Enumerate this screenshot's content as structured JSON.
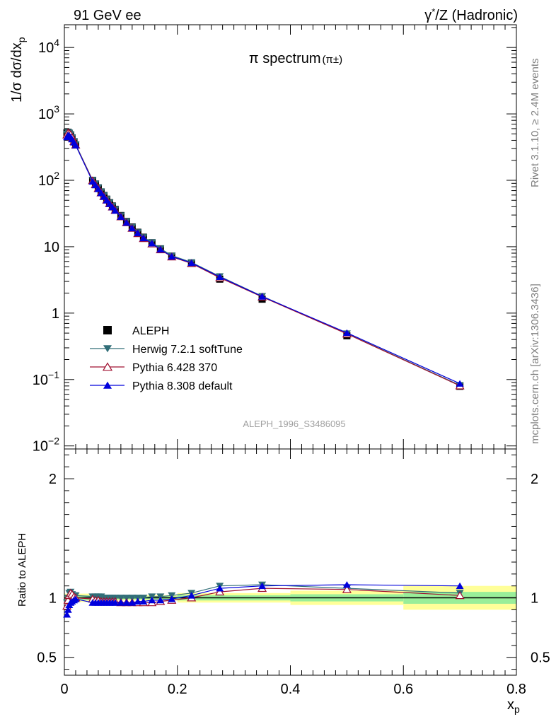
{
  "header": {
    "left": "91 GeV ee",
    "right_base": "γ",
    "right_sup": "*",
    "right_rest": "/Z (Hadronic)"
  },
  "side_labels": {
    "rivet": "Rivet 3.1.10, ≥ 2.4M events",
    "mcplots": "mcplots.cern.ch [arXiv:1306.3436]"
  },
  "chart_data": {
    "type": "scatter",
    "title_main": "π spectrum",
    "title_sub": "(π±)",
    "watermark": "ALEPH_1996_S3486095",
    "ylabel_base": "1/σ dσ/dx",
    "ylabel_sub": "p",
    "xlabel_base": "x",
    "xlabel_sub": "p",
    "ratio_ylabel": "Ratio to ALEPH",
    "xlim": [
      0,
      0.8
    ],
    "ylim": [
      0.009,
      22000
    ],
    "yscale": "log",
    "ratio_ylim": [
      0.35,
      2.25
    ],
    "x_ticks": [
      {
        "v": 0,
        "label": "0"
      },
      {
        "v": 0.2,
        "label": "0.2"
      },
      {
        "v": 0.4,
        "label": "0.4"
      },
      {
        "v": 0.6,
        "label": "0.6"
      },
      {
        "v": 0.8,
        "label": "0.8"
      }
    ],
    "y_ticks": [
      {
        "v": 0.01,
        "base": "10",
        "exp": "−2"
      },
      {
        "v": 0.1,
        "base": "10",
        "exp": "−1"
      },
      {
        "v": 1,
        "base": "1",
        "exp": ""
      },
      {
        "v": 10,
        "base": "10",
        "exp": ""
      },
      {
        "v": 100,
        "base": "10",
        "exp": "2"
      },
      {
        "v": 1000,
        "base": "10",
        "exp": "3"
      },
      {
        "v": 10000,
        "base": "10",
        "exp": "4"
      }
    ],
    "ratio_ticks": [
      {
        "v": 0.5,
        "label": "0.5"
      },
      {
        "v": 1,
        "label": "1"
      },
      {
        "v": 2,
        "label": "2"
      }
    ],
    "x": [
      0.0045,
      0.0065,
      0.0085,
      0.011,
      0.0135,
      0.017,
      0.02,
      0.05,
      0.055,
      0.06,
      0.065,
      0.07,
      0.075,
      0.08,
      0.085,
      0.09,
      0.1,
      0.11,
      0.12,
      0.13,
      0.14,
      0.155,
      0.17,
      0.19,
      0.225,
      0.275,
      0.35,
      0.5,
      0.7
    ],
    "data_values": [
      520,
      530,
      500,
      470,
      430,
      380,
      340,
      100,
      88,
      77,
      67,
      59,
      52,
      46,
      41,
      36.5,
      29.5,
      24,
      19.8,
      16.5,
      13.9,
      11.5,
      9.3,
      7.2,
      5.6,
      3.25,
      1.62,
      0.455,
      0.079
    ],
    "band_bins": [
      {
        "x0": 0.0,
        "x1": 0.05,
        "inner": 0.02,
        "outer": 0.035
      },
      {
        "x0": 0.05,
        "x1": 0.2,
        "inner": 0.012,
        "outer": 0.022
      },
      {
        "x0": 0.2,
        "x1": 0.4,
        "inner": 0.022,
        "outer": 0.04
      },
      {
        "x0": 0.4,
        "x1": 0.6,
        "inner": 0.03,
        "outer": 0.06
      },
      {
        "x0": 0.6,
        "x1": 0.8,
        "inner": 0.05,
        "outer": 0.1
      }
    ],
    "series": [
      {
        "name": "ALEPH",
        "color": "#000000",
        "marker": "square",
        "ratio": [
          1,
          1,
          1,
          1,
          1,
          1,
          1,
          1,
          1,
          1,
          1,
          1,
          1,
          1,
          1,
          1,
          1,
          1,
          1,
          1,
          1,
          1,
          1,
          1,
          1,
          1,
          1,
          1,
          1
        ]
      },
      {
        "name": "Herwig 7.2.1 softTune",
        "color": "#316e78",
        "marker": "triangle-down",
        "ratio": [
          0.96,
          1.0,
          1.04,
          1.05,
          1.03,
          1.02,
          1.02,
          1.01,
          1.01,
          1.01,
          1.01,
          1.0,
          1.0,
          1.0,
          1.0,
          1.0,
          1.0,
          1.0,
          1.0,
          1.0,
          1.0,
          1.01,
          1.01,
          1.02,
          1.04,
          1.1,
          1.11,
          1.08,
          1.04
        ]
      },
      {
        "name": "Pythia 6.428 370",
        "color": "#a01030",
        "marker": "triangle-open",
        "ratio": [
          0.93,
          0.98,
          1.02,
          1.04,
          1.03,
          1.01,
          1.0,
          0.99,
          0.98,
          0.98,
          0.97,
          0.97,
          0.97,
          0.97,
          0.97,
          0.97,
          0.96,
          0.96,
          0.96,
          0.96,
          0.96,
          0.96,
          0.97,
          0.98,
          1.0,
          1.05,
          1.08,
          1.07,
          1.02
        ]
      },
      {
        "name": "Pythia 8.308 default",
        "color": "#0000dc",
        "marker": "triangle-up",
        "ratio": [
          0.86,
          0.9,
          0.94,
          0.96,
          0.97,
          0.98,
          0.99,
          0.96,
          0.96,
          0.96,
          0.96,
          0.96,
          0.96,
          0.96,
          0.96,
          0.96,
          0.96,
          0.96,
          0.96,
          0.97,
          0.97,
          0.98,
          0.98,
          0.99,
          1.02,
          1.08,
          1.1,
          1.11,
          1.1
        ]
      }
    ],
    "legend_position": "lower-left"
  }
}
